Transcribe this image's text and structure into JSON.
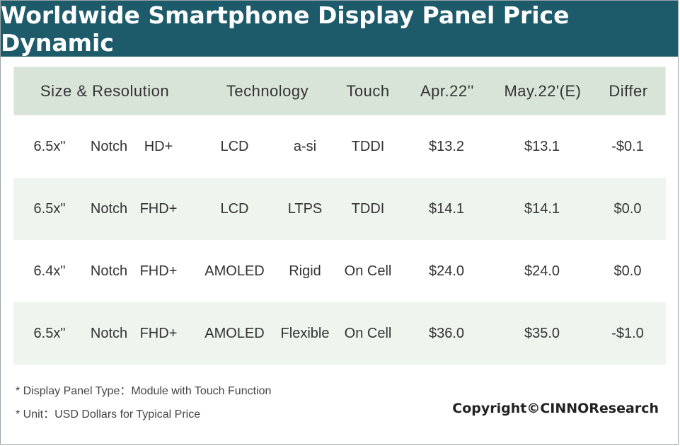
{
  "title": "Worldwide Smartphone Display Panel Price Dynamic",
  "chart_data": {
    "type": "table",
    "title": "Worldwide Smartphone Display Panel Price Dynamic",
    "columns": [
      "Size & Resolution",
      "Technology",
      "Touch",
      "Apr.22''",
      "May.22'(E)",
      "Differ"
    ],
    "rows": [
      {
        "size": "6.5x\"",
        "shape": "Notch",
        "res": "HD+",
        "tech": "LCD",
        "sub": "a-si",
        "touch": "TDDI",
        "apr": "$13.2",
        "may": "$13.1",
        "diff": "-$0.1"
      },
      {
        "size": "6.5x\"",
        "shape": "Notch",
        "res": "FHD+",
        "tech": "LCD",
        "sub": "LTPS",
        "touch": "TDDI",
        "apr": "$14.1",
        "may": "$14.1",
        "diff": "$0.0"
      },
      {
        "size": "6.4x\"",
        "shape": "Notch",
        "res": "FHD+",
        "tech": "AMOLED",
        "sub": "Rigid",
        "touch": "On Cell",
        "apr": "$24.0",
        "may": "$24.0",
        "diff": "$0.0"
      },
      {
        "size": "6.5x\"",
        "shape": "Notch",
        "res": "FHD+",
        "tech": "AMOLED",
        "sub": "Flexible",
        "touch": "On Cell",
        "apr": "$36.0",
        "may": "$35.0",
        "diff": "-$1.0"
      }
    ]
  },
  "notes": [
    "* Display Panel Type：Module with Touch Function",
    "* Unit：USD Dollars for Typical Price"
  ],
  "copyright": "Copyright©CINNOResearch",
  "colors": {
    "title_bg": "#1d5b6b",
    "header_bg": "#d9e4d9",
    "stripe_bg": "#eef4ee"
  }
}
